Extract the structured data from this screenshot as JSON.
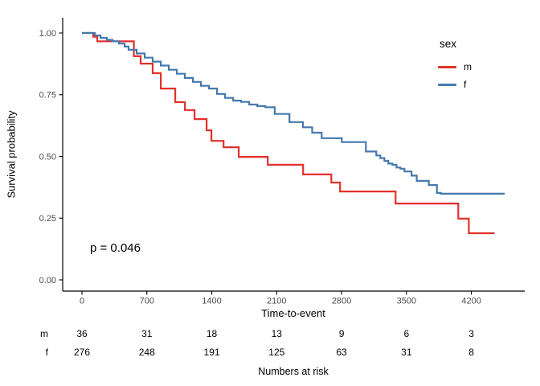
{
  "chart_data": {
    "type": "line",
    "subtype": "kaplan-meier-step",
    "title": "",
    "xlabel": "Time-to-event",
    "ylabel": "Survival probability",
    "p_value_label": "p = 0.046",
    "xticks": [
      0,
      700,
      1400,
      2100,
      2800,
      3500,
      4200
    ],
    "yticks": [
      0.0,
      0.25,
      0.5,
      0.75,
      1.0
    ],
    "ytick_labels": [
      "0.00",
      "0.25",
      "0.50",
      "0.75",
      "1.00"
    ],
    "xlim": [
      0,
      4560
    ],
    "ylim": [
      0,
      1
    ],
    "grid": false,
    "legend_position": "right",
    "series": [
      {
        "name": "m",
        "color": "#E2312B",
        "end_time": 4450,
        "points": [
          [
            0,
            1.0
          ],
          [
            121,
            0.985
          ],
          [
            165,
            0.966
          ],
          [
            560,
            0.906
          ],
          [
            633,
            0.876
          ],
          [
            763,
            0.837
          ],
          [
            850,
            0.775
          ],
          [
            1006,
            0.72
          ],
          [
            1110,
            0.688
          ],
          [
            1214,
            0.651
          ],
          [
            1344,
            0.606
          ],
          [
            1396,
            0.563
          ],
          [
            1527,
            0.537
          ],
          [
            1691,
            0.498
          ],
          [
            2004,
            0.466
          ],
          [
            2385,
            0.427
          ],
          [
            2689,
            0.394
          ],
          [
            2784,
            0.358
          ],
          [
            3383,
            0.309
          ],
          [
            4059,
            0.248
          ],
          [
            4172,
            0.189
          ]
        ]
      },
      {
        "name": "f",
        "color": "#4579AE",
        "end_time": 4560,
        "points": [
          [
            0,
            1.0
          ],
          [
            139,
            0.99
          ],
          [
            200,
            0.98
          ],
          [
            269,
            0.972
          ],
          [
            330,
            0.966
          ],
          [
            399,
            0.957
          ],
          [
            460,
            0.945
          ],
          [
            503,
            0.932
          ],
          [
            590,
            0.917
          ],
          [
            677,
            0.9
          ],
          [
            763,
            0.884
          ],
          [
            850,
            0.868
          ],
          [
            937,
            0.851
          ],
          [
            1023,
            0.835
          ],
          [
            1110,
            0.818
          ],
          [
            1197,
            0.802
          ],
          [
            1284,
            0.786
          ],
          [
            1370,
            0.775
          ],
          [
            1457,
            0.753
          ],
          [
            1544,
            0.737
          ],
          [
            1631,
            0.726
          ],
          [
            1717,
            0.721
          ],
          [
            1804,
            0.71
          ],
          [
            1891,
            0.704
          ],
          [
            1978,
            0.699
          ],
          [
            2079,
            0.672
          ],
          [
            2238,
            0.639
          ],
          [
            2383,
            0.618
          ],
          [
            2483,
            0.596
          ],
          [
            2585,
            0.574
          ],
          [
            2802,
            0.558
          ],
          [
            3062,
            0.52
          ],
          [
            3175,
            0.504
          ],
          [
            3218,
            0.493
          ],
          [
            3262,
            0.482
          ],
          [
            3305,
            0.471
          ],
          [
            3348,
            0.466
          ],
          [
            3392,
            0.455
          ],
          [
            3435,
            0.45
          ],
          [
            3478,
            0.439
          ],
          [
            3554,
            0.422
          ],
          [
            3611,
            0.401
          ],
          [
            3741,
            0.384
          ],
          [
            3828,
            0.352
          ],
          [
            3871,
            0.349
          ]
        ]
      }
    ]
  },
  "legend": {
    "title": "sex",
    "items": [
      {
        "label": "m",
        "color": "#E2312B"
      },
      {
        "label": "f",
        "color": "#4579AE"
      }
    ]
  },
  "risk_table": {
    "caption": "Numbers at risk",
    "time_points": [
      0,
      700,
      1400,
      2100,
      2800,
      3500,
      4200
    ],
    "rows": [
      {
        "label": "m",
        "counts": [
          36,
          31,
          18,
          13,
          9,
          6,
          3
        ]
      },
      {
        "label": "f",
        "counts": [
          276,
          248,
          191,
          125,
          63,
          31,
          8
        ]
      }
    ]
  },
  "colors": {
    "axis": "#000000",
    "tick_label": "#4d4d4d",
    "background": "#ffffff"
  }
}
